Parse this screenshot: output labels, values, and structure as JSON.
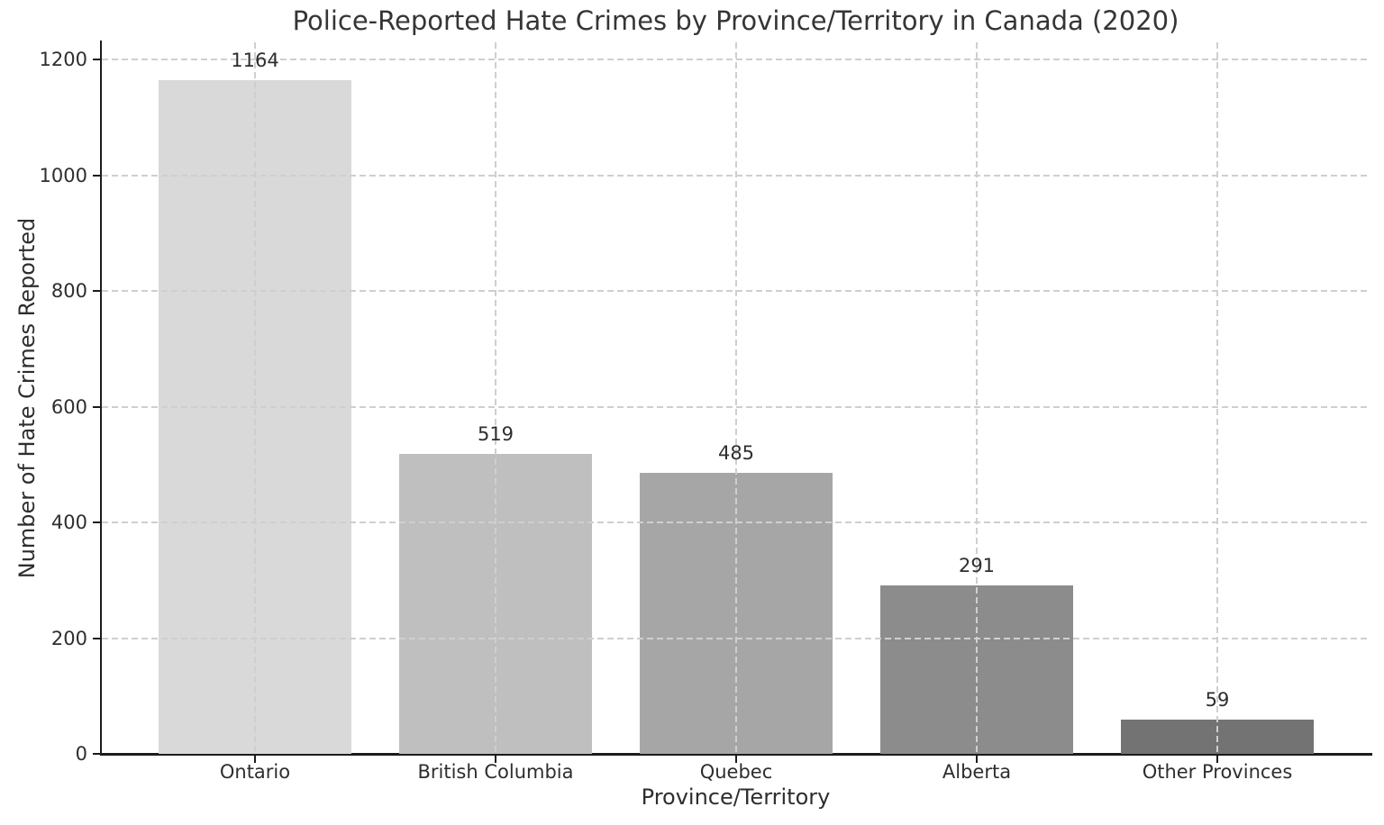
{
  "chart_data": {
    "type": "bar",
    "title": "Police-Reported Hate Crimes by Province/Territory in Canada (2020)",
    "xlabel": "Province/Territory",
    "ylabel": "Number of Hate Crimes Reported",
    "categories": [
      "Ontario",
      "British Columbia",
      "Quebec",
      "Alberta",
      "Other Provinces"
    ],
    "values": [
      1164,
      519,
      485,
      291,
      59
    ],
    "bar_colors": [
      "#d9d9d9",
      "#bfbfbf",
      "#a6a6a6",
      "#8c8c8c",
      "#737373"
    ],
    "yticks": [
      0,
      200,
      400,
      600,
      800,
      1000,
      1200
    ],
    "ylim": [
      0,
      1230
    ],
    "grid": "dashed horizontal and vertical gridlines, drawn above bars",
    "legend": "none",
    "value_labels_shown": true
  }
}
